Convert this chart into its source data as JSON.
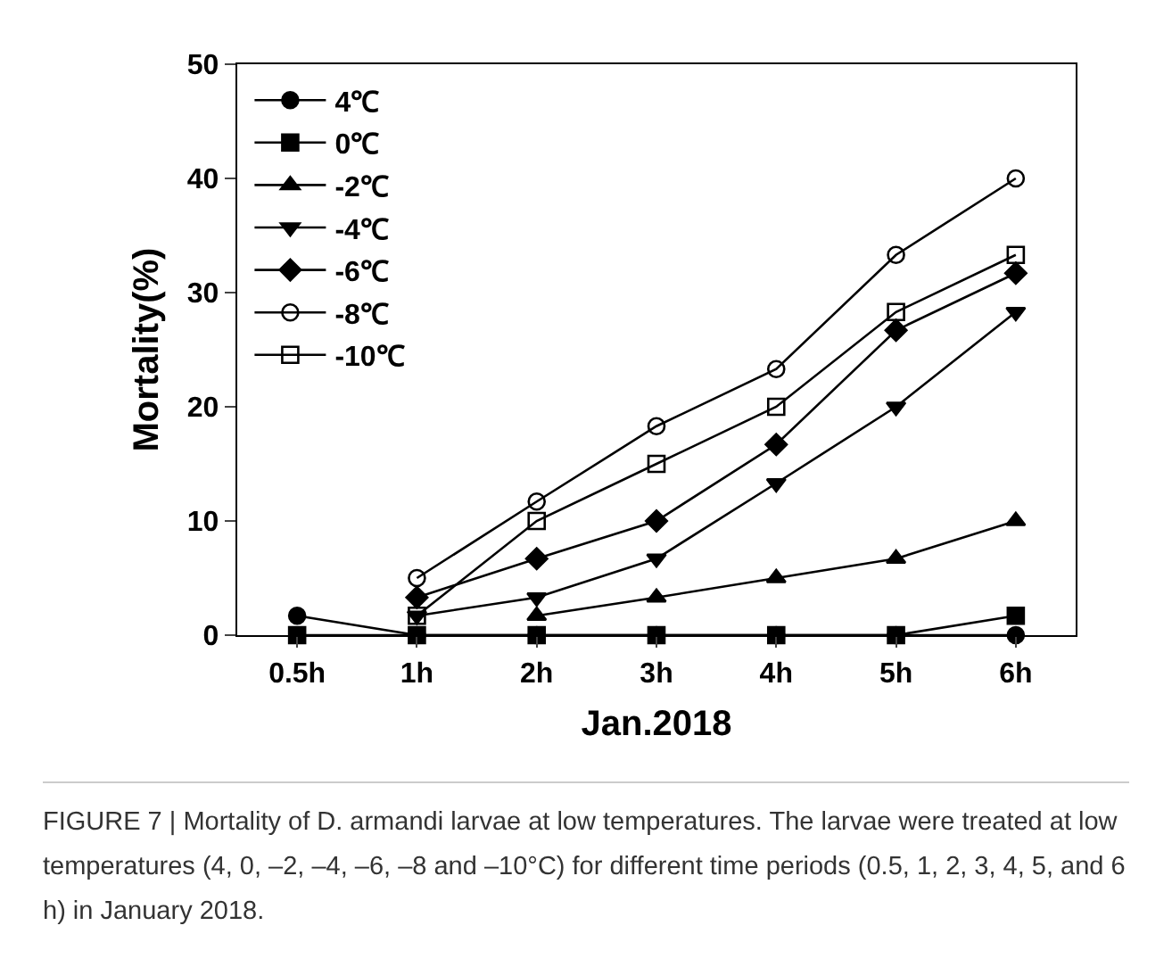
{
  "chart_data": {
    "type": "line",
    "xlabel": "Jan.2018",
    "ylabel": "Mortality(%)",
    "categories": [
      "0.5h",
      "1h",
      "2h",
      "3h",
      "4h",
      "5h",
      "6h"
    ],
    "ylim": [
      0,
      50
    ],
    "yticks": [
      0,
      10,
      20,
      30,
      40,
      50
    ],
    "grid": false,
    "legend": "top left",
    "line_style": "solid",
    "series": [
      {
        "name": "4℃",
        "color": "#000000",
        "marker": "circle",
        "values": [
          1.7,
          0,
          0,
          0,
          0,
          0,
          0
        ]
      },
      {
        "name": "0℃",
        "color": "#000000",
        "marker": "square",
        "values": [
          0,
          0,
          0,
          0,
          0,
          0,
          1.7
        ]
      },
      {
        "name": "-2℃",
        "color": "#000000",
        "marker": "triangle",
        "values": [
          null,
          null,
          1.7,
          3.3,
          5,
          6.7,
          10
        ]
      },
      {
        "name": "-4℃",
        "color": "#000000",
        "marker": "triangle-down",
        "values": [
          null,
          1.7,
          3.3,
          6.7,
          13.3,
          20,
          28.3
        ]
      },
      {
        "name": "-6℃",
        "color": "#000000",
        "marker": "diamond",
        "values": [
          null,
          3.3,
          6.7,
          10,
          16.7,
          26.7,
          31.7
        ]
      },
      {
        "name": "-8℃",
        "color": "#000000",
        "marker": "circle-open",
        "values": [
          null,
          5,
          11.7,
          18.3,
          23.3,
          33.3,
          40
        ]
      },
      {
        "name": "-10℃",
        "color": "#000000",
        "marker": "square-open",
        "values": [
          null,
          1.7,
          10,
          15,
          20,
          28.3,
          33.3
        ]
      }
    ],
    "annotations": [
      "FIGURE 7 | Mortality of D. armandi larvae at low temperatures. The larvae were treated at low temperatures (4, 0, –2, –4, –6, –8 and –10°C) for different time periods (0.5, 1, 2, 3, 4, 5, and 6 h) in January 2018."
    ]
  }
}
